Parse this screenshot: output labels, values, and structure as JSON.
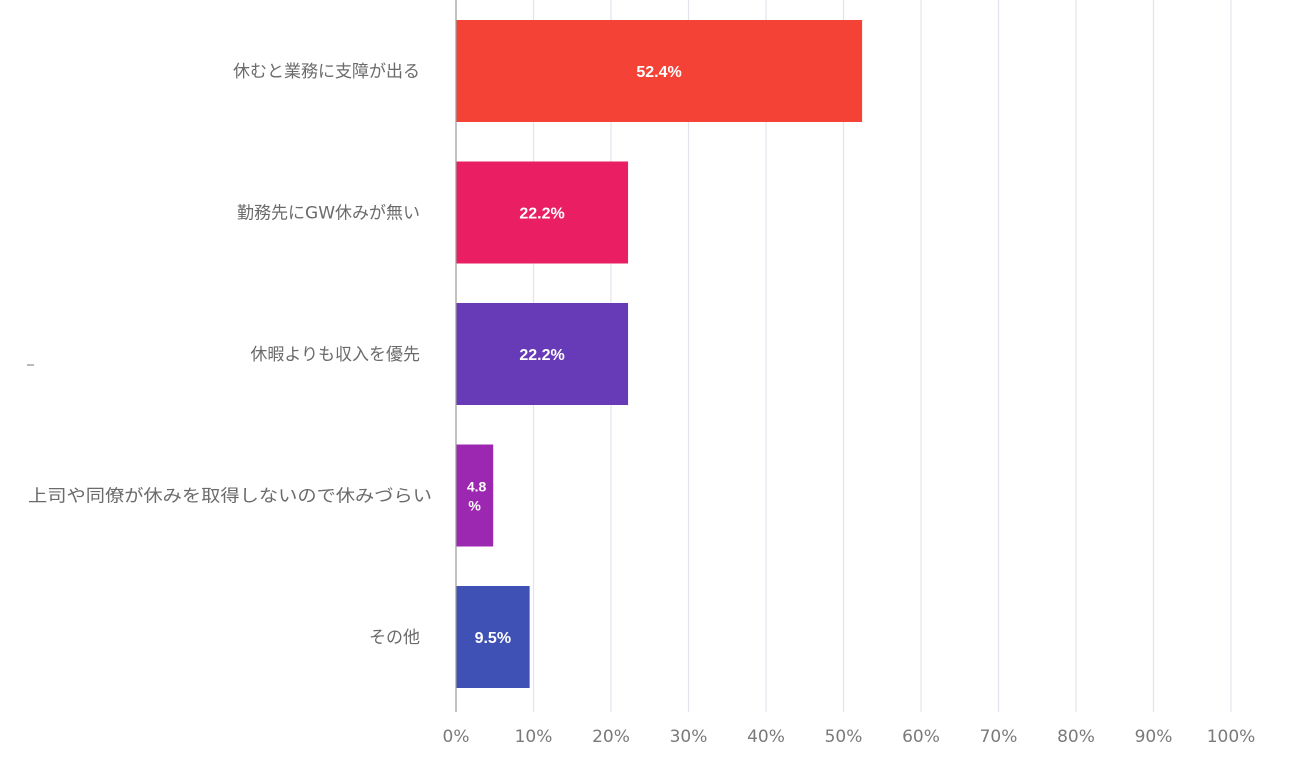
{
  "chart_data": {
    "type": "bar",
    "orientation": "horizontal",
    "categories": [
      "休むと業務に支障が出る",
      "勤務先にGW休みが無い",
      "休暇よりも収入を優先",
      "上司や同僚が休みを取得しないので休みづらい",
      "その他"
    ],
    "values": [
      52.4,
      22.2,
      22.2,
      4.8,
      9.5
    ],
    "value_labels": [
      "52.4%",
      "22.2%",
      "22.2%",
      "4.8 %",
      "9.5%"
    ],
    "colors": [
      "#f44336",
      "#e91e63",
      "#673ab7",
      "#9c27b0",
      "#3f51b5"
    ],
    "xlim": [
      0,
      100
    ],
    "x_ticks": [
      0,
      10,
      20,
      30,
      40,
      50,
      60,
      70,
      80,
      90,
      100
    ],
    "x_tick_labels": [
      "0%",
      "10%",
      "20%",
      "30%",
      "40%",
      "50%",
      "60%",
      "70%",
      "80%",
      "90%",
      "100%"
    ],
    "title": "",
    "xlabel": "",
    "ylabel": "",
    "grid": true,
    "legend": "none"
  }
}
